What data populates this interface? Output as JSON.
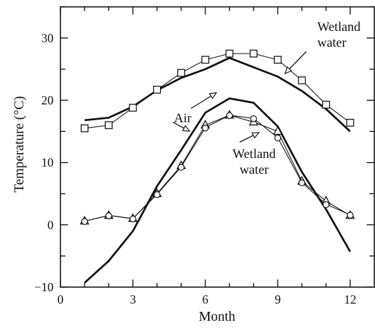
{
  "chart_data": {
    "type": "line",
    "title": "",
    "xlabel": "Month",
    "ylabel": "Temperature (°C)",
    "xlim": [
      0,
      13
    ],
    "ylim": [
      -10,
      35
    ],
    "xticks": [
      0,
      3,
      6,
      9,
      12
    ],
    "yticks": [
      -10,
      0,
      10,
      20,
      30
    ],
    "grid": false,
    "series": [
      {
        "style": "thick-line",
        "x": [
          1,
          2,
          3,
          4,
          5,
          6,
          7,
          8,
          9,
          10,
          11,
          12
        ],
        "y": [
          16.8,
          17.2,
          19.0,
          21.6,
          23.6,
          25.0,
          26.8,
          25.3,
          23.8,
          21.5,
          18.6,
          15.0
        ]
      },
      {
        "style": "line-square-markers",
        "x": [
          1,
          2,
          3,
          4,
          5,
          6,
          7,
          8,
          9,
          10,
          11,
          12
        ],
        "y": [
          15.5,
          16.0,
          18.8,
          21.7,
          24.4,
          26.5,
          27.5,
          27.5,
          26.5,
          23.2,
          19.3,
          16.4
        ]
      },
      {
        "style": "thick-line",
        "x": [
          1,
          2,
          3,
          4,
          5,
          6,
          7,
          8,
          9,
          10,
          11,
          12
        ],
        "y": [
          -9.3,
          -5.8,
          -1.0,
          6.2,
          12.0,
          18.0,
          20.3,
          19.6,
          15.8,
          8.5,
          2.5,
          -4.3
        ]
      },
      {
        "style": "line-triangle-markers",
        "x": [
          1,
          2,
          3,
          4,
          5,
          6,
          7,
          8,
          9,
          10,
          11,
          12
        ],
        "y": [
          0.6,
          1.5,
          1.0,
          5.0,
          9.5,
          16.0,
          17.6,
          16.5,
          15.0,
          7.0,
          3.8,
          1.5
        ]
      },
      {
        "style": "line-circle-markers",
        "x": [
          1,
          2,
          3,
          4,
          5,
          6,
          7,
          8,
          9,
          10,
          11,
          12
        ],
        "y": [
          0.6,
          1.5,
          1.0,
          4.9,
          9.3,
          15.6,
          17.6,
          17.1,
          14.0,
          6.8,
          3.3,
          1.6
        ]
      }
    ],
    "annotations": [
      {
        "lines": [
          "Wetland",
          "water"
        ]
      },
      {
        "lines": [
          "Air"
        ]
      },
      {
        "lines": [
          "Wetland",
          "water"
        ]
      }
    ]
  }
}
